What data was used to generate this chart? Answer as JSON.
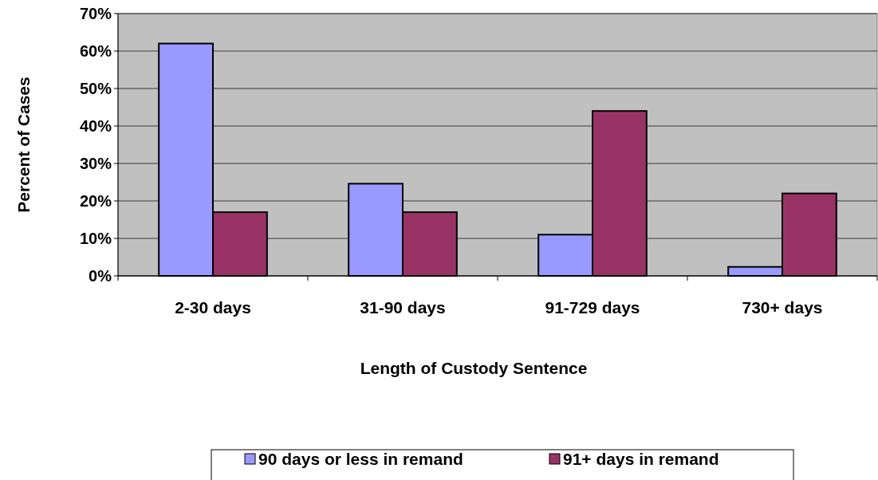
{
  "chart_data": {
    "type": "bar",
    "xlabel": "Length of Custody Sentence",
    "ylabel": "Percent of Cases",
    "categories": [
      "2-30 days",
      "31-90 days",
      "91-729 days",
      "730+ days"
    ],
    "series": [
      {
        "name": "90 days or less in remand",
        "color": "#9999ff",
        "values": [
          62,
          24.6,
          11,
          2.4
        ]
      },
      {
        "name": "91+ days in remand",
        "color": "#993366",
        "values": [
          17,
          17,
          44,
          22
        ]
      }
    ],
    "ylim": [
      0,
      70
    ],
    "yticks": [
      {
        "value": 0,
        "label": "0%"
      },
      {
        "value": 10,
        "label": "10%"
      },
      {
        "value": 20,
        "label": "20%"
      },
      {
        "value": 30,
        "label": "30%"
      },
      {
        "value": 40,
        "label": "40%"
      },
      {
        "value": 50,
        "label": "50%"
      },
      {
        "value": 60,
        "label": "60%"
      },
      {
        "value": 70,
        "label": "70%"
      }
    ],
    "grid": "y",
    "legend": "bottom"
  }
}
